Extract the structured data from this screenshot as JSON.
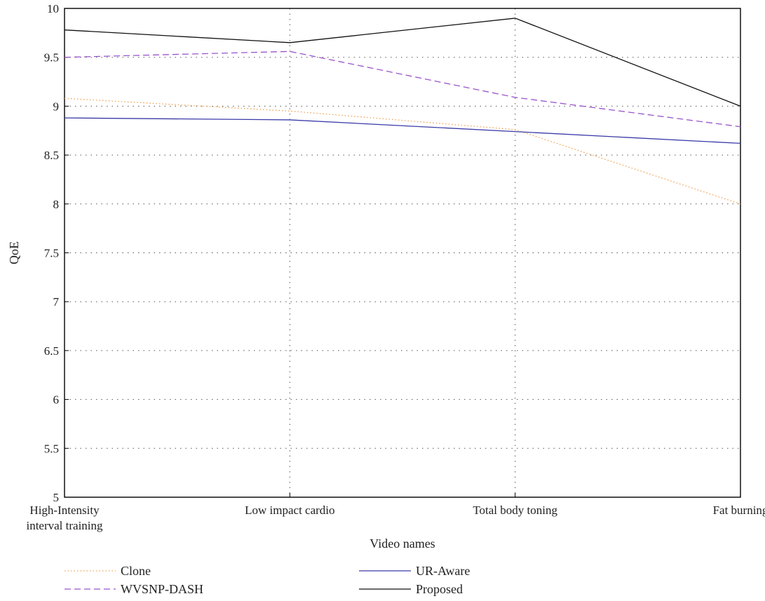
{
  "chart_data": {
    "type": "line",
    "xlabel": "Video names",
    "ylabel": "QoE",
    "ylim": [
      5,
      10
    ],
    "yticks": [
      "5",
      "5.5",
      "6",
      "6.5",
      "7",
      "7.5",
      "8",
      "8.5",
      "9",
      "9.5",
      "10"
    ],
    "categories": [
      [
        "High-Intensity",
        "interval training"
      ],
      [
        "Low impact cardio"
      ],
      [
        "Total body toning"
      ],
      [
        "Fat burning"
      ]
    ],
    "grid": true,
    "legend_position": "bottom",
    "series": [
      {
        "name": "Clone",
        "values": [
          9.08,
          8.95,
          8.76,
          8.0
        ],
        "color": "#f0a050",
        "style": "dotted"
      },
      {
        "name": "UR-Aware",
        "values": [
          8.88,
          8.86,
          8.74,
          8.62
        ],
        "color": "#3a3aa8",
        "style": "solid"
      },
      {
        "name": "WVSNP-DASH",
        "values": [
          9.5,
          9.56,
          9.09,
          8.79
        ],
        "color": "#9955cc",
        "style": "dashed"
      },
      {
        "name": "Proposed",
        "values": [
          9.78,
          9.65,
          9.9,
          9.0
        ],
        "color": "#111111",
        "style": "solid"
      }
    ]
  }
}
